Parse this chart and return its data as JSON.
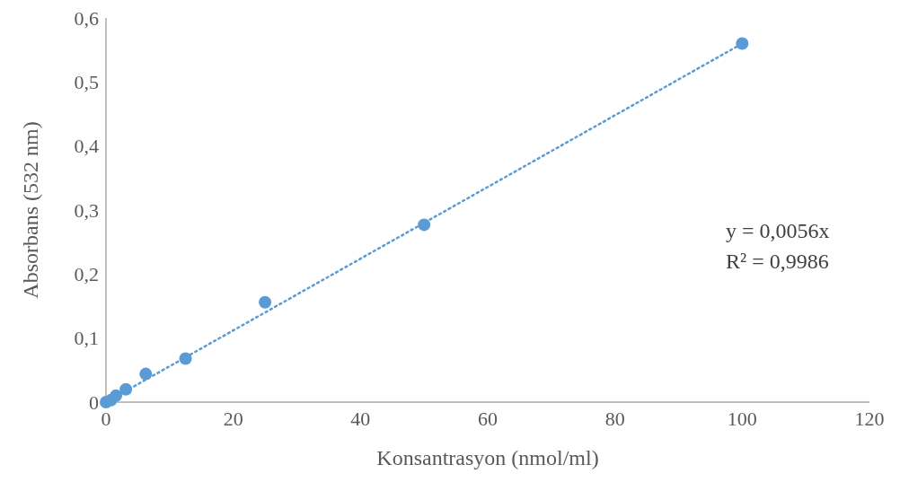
{
  "chart_data": {
    "type": "scatter",
    "xlabel": "Konsantrasyon (nmol/ml)",
    "ylabel": "Absorbans (532 nm)",
    "series": [
      {
        "color": "#5b9bd5",
        "x": [
          0,
          0.78,
          1.56,
          3.125,
          6.25,
          12.5,
          25,
          50,
          100
        ],
        "values": [
          0,
          0.003,
          0.01,
          0.02,
          0.044,
          0.068,
          0.156,
          0.277,
          0.56
        ],
        "marker": "circle"
      },
      {
        "type": "line",
        "color": "#5b9bd5",
        "x": [
          0,
          100
        ],
        "values": [
          0,
          0.56
        ],
        "line_style": "dotted"
      }
    ],
    "xlim": [
      0,
      120
    ],
    "xticks": [
      0,
      20,
      40,
      60,
      80,
      100,
      120
    ],
    "ylim": [
      0,
      0.6
    ],
    "yticks": [
      {
        "value": 0,
        "label": "0"
      },
      {
        "value": 0.1,
        "label": "0,1"
      },
      {
        "value": 0.2,
        "label": "0,2"
      },
      {
        "value": 0.3,
        "label": "0,3"
      },
      {
        "value": 0.4,
        "label": "0,4"
      },
      {
        "value": 0.5,
        "label": "0,5"
      },
      {
        "value": 0.6,
        "label": "0,6"
      }
    ],
    "grid": false,
    "legend": false,
    "annotations": [
      {
        "text": "y = 0,0056x\nR² = 0,9986"
      }
    ]
  }
}
